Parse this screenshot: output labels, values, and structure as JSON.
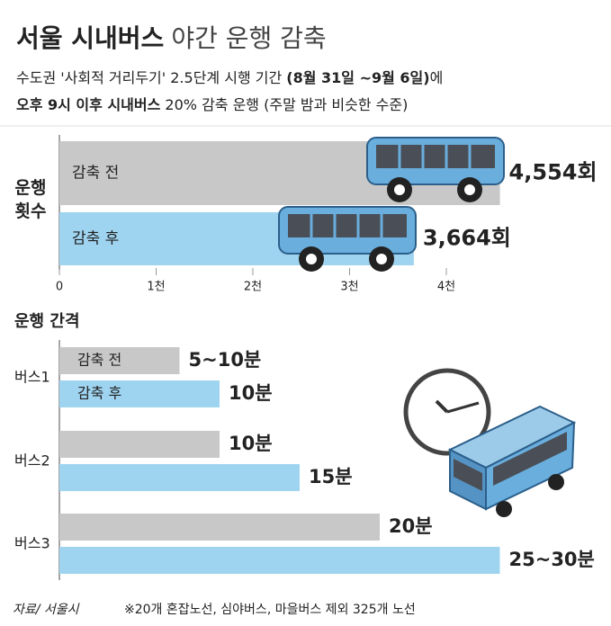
{
  "header": {
    "title": [
      "서울 시내버스",
      "야간 운행 감축"
    ],
    "subtitle": [
      [
        "수도권 '사회적 거리두기' 2.5단계 시행 기간 ",
        "(8월 31일 ~9월 6일)",
        "에"
      ],
      [
        "오후 9시 이후 시내버스",
        " 20% 감축 운행 (주말 밤과 비슷한 수준)"
      ]
    ]
  },
  "chart_data": [
    {
      "type": "bar",
      "orientation": "horizontal",
      "y_label": "운행 횟수",
      "categories": [
        "감축 전",
        "감축 후"
      ],
      "values": [
        4554,
        3664
      ],
      "value_labels": [
        "4,554회",
        "3,664회"
      ],
      "colors": [
        "#c8c8c8",
        "#9fd4f0"
      ],
      "xlim": [
        0,
        5000
      ],
      "xticks": [
        0,
        {
          "value": 1000,
          "label": "1천"
        },
        {
          "value": 2000,
          "label": "2천"
        },
        {
          "value": 3000,
          "label": "3천"
        },
        {
          "value": 4000,
          "label": "4천"
        }
      ]
    },
    {
      "type": "bar",
      "orientation": "horizontal",
      "title": "운행 간격",
      "categories": [
        "버스1",
        "버스2",
        "버스3"
      ],
      "xlim": [
        0,
        30
      ],
      "series": [
        {
          "name": "감축 전",
          "color": "#c8c8c8",
          "values": [
            7.5,
            10,
            20
          ],
          "value_labels": [
            "5~10분",
            "10분",
            "20분"
          ]
        },
        {
          "name": "감축 후",
          "color": "#9fd4f0",
          "values": [
            10,
            15,
            27.5
          ],
          "value_labels": [
            "10분",
            "15분",
            "25~30분"
          ]
        }
      ]
    }
  ],
  "footer": {
    "source": "자료/ 서울시",
    "note": "※20개 혼잡노선, 심야버스, 마을버스 제외 325개 노선"
  }
}
